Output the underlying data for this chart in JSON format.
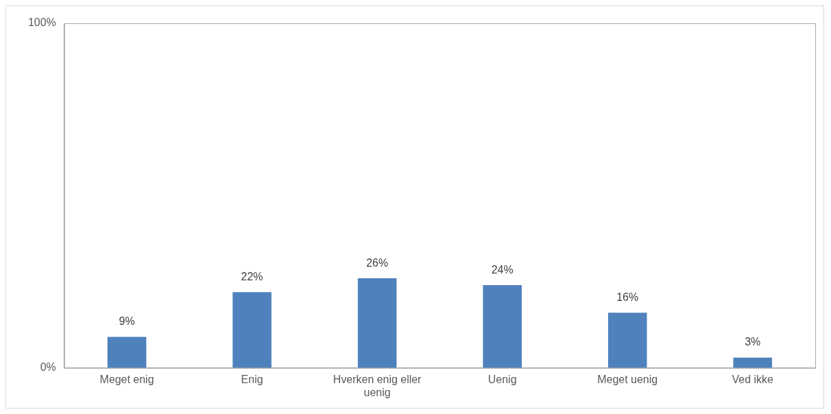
{
  "chart_data": {
    "type": "bar",
    "categories": [
      "Meget enig",
      "Enig",
      "Hverken enig eller uenig",
      "Uenig",
      "Meget uenig",
      "Ved ikke"
    ],
    "values": [
      9,
      22,
      26,
      24,
      16,
      3
    ],
    "value_labels": [
      "9%",
      "22%",
      "26%",
      "24%",
      "16%",
      "3%"
    ],
    "color": "#4f81bd",
    "ylim": [
      0,
      100
    ],
    "yticks": [
      {
        "value": 0,
        "label": "0%"
      },
      {
        "value": 100,
        "label": "100%"
      }
    ],
    "grid": false,
    "legend": false
  }
}
